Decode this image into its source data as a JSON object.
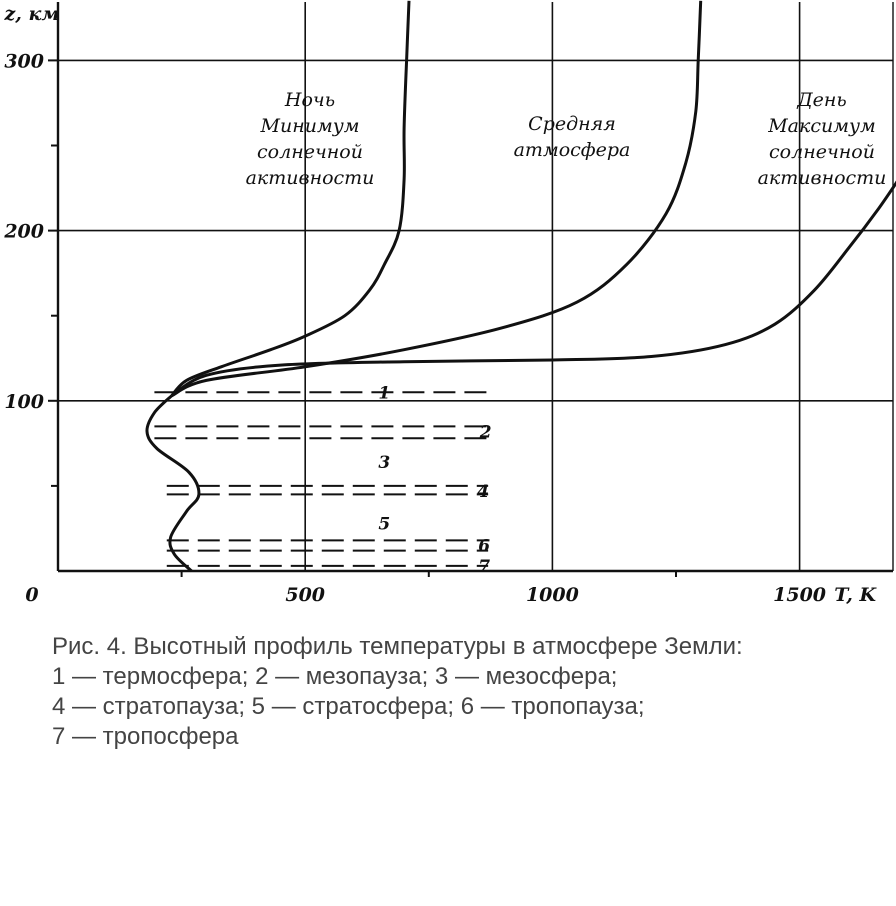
{
  "chart_data": {
    "type": "line",
    "x_axis_label": "T, K",
    "y_axis_label": "z, км",
    "x_ticks": [
      {
        "value": 0,
        "label": "0"
      },
      {
        "value": 500,
        "label": "500"
      },
      {
        "value": 1000,
        "label": "1000"
      },
      {
        "value": 1500,
        "label": "1500"
      }
    ],
    "y_ticks": [
      {
        "value": 100,
        "label": "100"
      },
      {
        "value": 200,
        "label": "200"
      },
      {
        "value": 300,
        "label": "300"
      }
    ],
    "xlim": [
      0,
      1700
    ],
    "ylim": [
      0,
      335
    ],
    "grid": true,
    "series": [
      {
        "name_lines": [
          "Ночь",
          "Минимум",
          "солнечной",
          "активности"
        ],
        "lower_profile": [
          [
            270,
            0
          ],
          [
            235,
            10
          ],
          [
            228,
            20
          ],
          [
            260,
            35
          ],
          [
            285,
            45
          ],
          [
            265,
            58
          ],
          [
            200,
            72
          ],
          [
            180,
            82
          ],
          [
            195,
            93
          ],
          [
            230,
            103
          ]
        ],
        "values": [
          [
            230,
            103
          ],
          [
            260,
            112
          ],
          [
            330,
            120
          ],
          [
            430,
            130
          ],
          [
            500,
            138
          ],
          [
            580,
            150
          ],
          [
            630,
            165
          ],
          [
            660,
            180
          ],
          [
            690,
            200
          ],
          [
            700,
            230
          ],
          [
            700,
            260
          ],
          [
            705,
            300
          ],
          [
            710,
            335
          ]
        ]
      },
      {
        "name_lines": [
          "Средняя",
          "атмосфера"
        ],
        "values": [
          [
            230,
            103
          ],
          [
            300,
            112
          ],
          [
            500,
            120
          ],
          [
            700,
            130
          ],
          [
            900,
            143
          ],
          [
            1050,
            158
          ],
          [
            1150,
            180
          ],
          [
            1230,
            210
          ],
          [
            1270,
            240
          ],
          [
            1290,
            270
          ],
          [
            1295,
            300
          ],
          [
            1300,
            335
          ]
        ]
      },
      {
        "name_lines": [
          "День",
          "Максимум",
          "солнечной",
          "активности"
        ],
        "values": [
          [
            230,
            103
          ],
          [
            300,
            115
          ],
          [
            450,
            121
          ],
          [
            700,
            123
          ],
          [
            1000,
            124
          ],
          [
            1200,
            126
          ],
          [
            1350,
            133
          ],
          [
            1450,
            145
          ],
          [
            1530,
            165
          ],
          [
            1600,
            190
          ],
          [
            1660,
            213
          ],
          [
            1700,
            230
          ]
        ]
      }
    ],
    "layers": [
      {
        "label": "1",
        "z": 105
      },
      {
        "label": "2",
        "z": 85
      },
      {
        "label": "2",
        "z": 78
      },
      {
        "label": "4",
        "z": 50
      },
      {
        "label": "4",
        "z": 45
      },
      {
        "label": "6",
        "z": 18
      },
      {
        "label": "6",
        "z": 12
      },
      {
        "label": "7",
        "z": 3
      }
    ],
    "layer_labels": [
      {
        "label": "1",
        "z": 105,
        "x": 660
      },
      {
        "label": "2",
        "z": 82,
        "x": 865
      },
      {
        "label": "3",
        "z": 64,
        "x": 660
      },
      {
        "label": "4",
        "z": 47,
        "x": 860
      },
      {
        "label": "5",
        "z": 28,
        "x": 660
      },
      {
        "label": "6",
        "z": 15,
        "x": 862
      },
      {
        "label": "7",
        "z": 3,
        "x": 862
      }
    ]
  },
  "caption": {
    "line1": "Рис. 4. Высотный профиль температуры в атмосфере Земли:",
    "line2": "1 — термосфера;  2 — мезопауза;  3 — мезосфера;",
    "line3": "4 — стратопауза; 5 — стратосфера; 6 — тропопауза;",
    "line4": "7 — тропосфера"
  }
}
